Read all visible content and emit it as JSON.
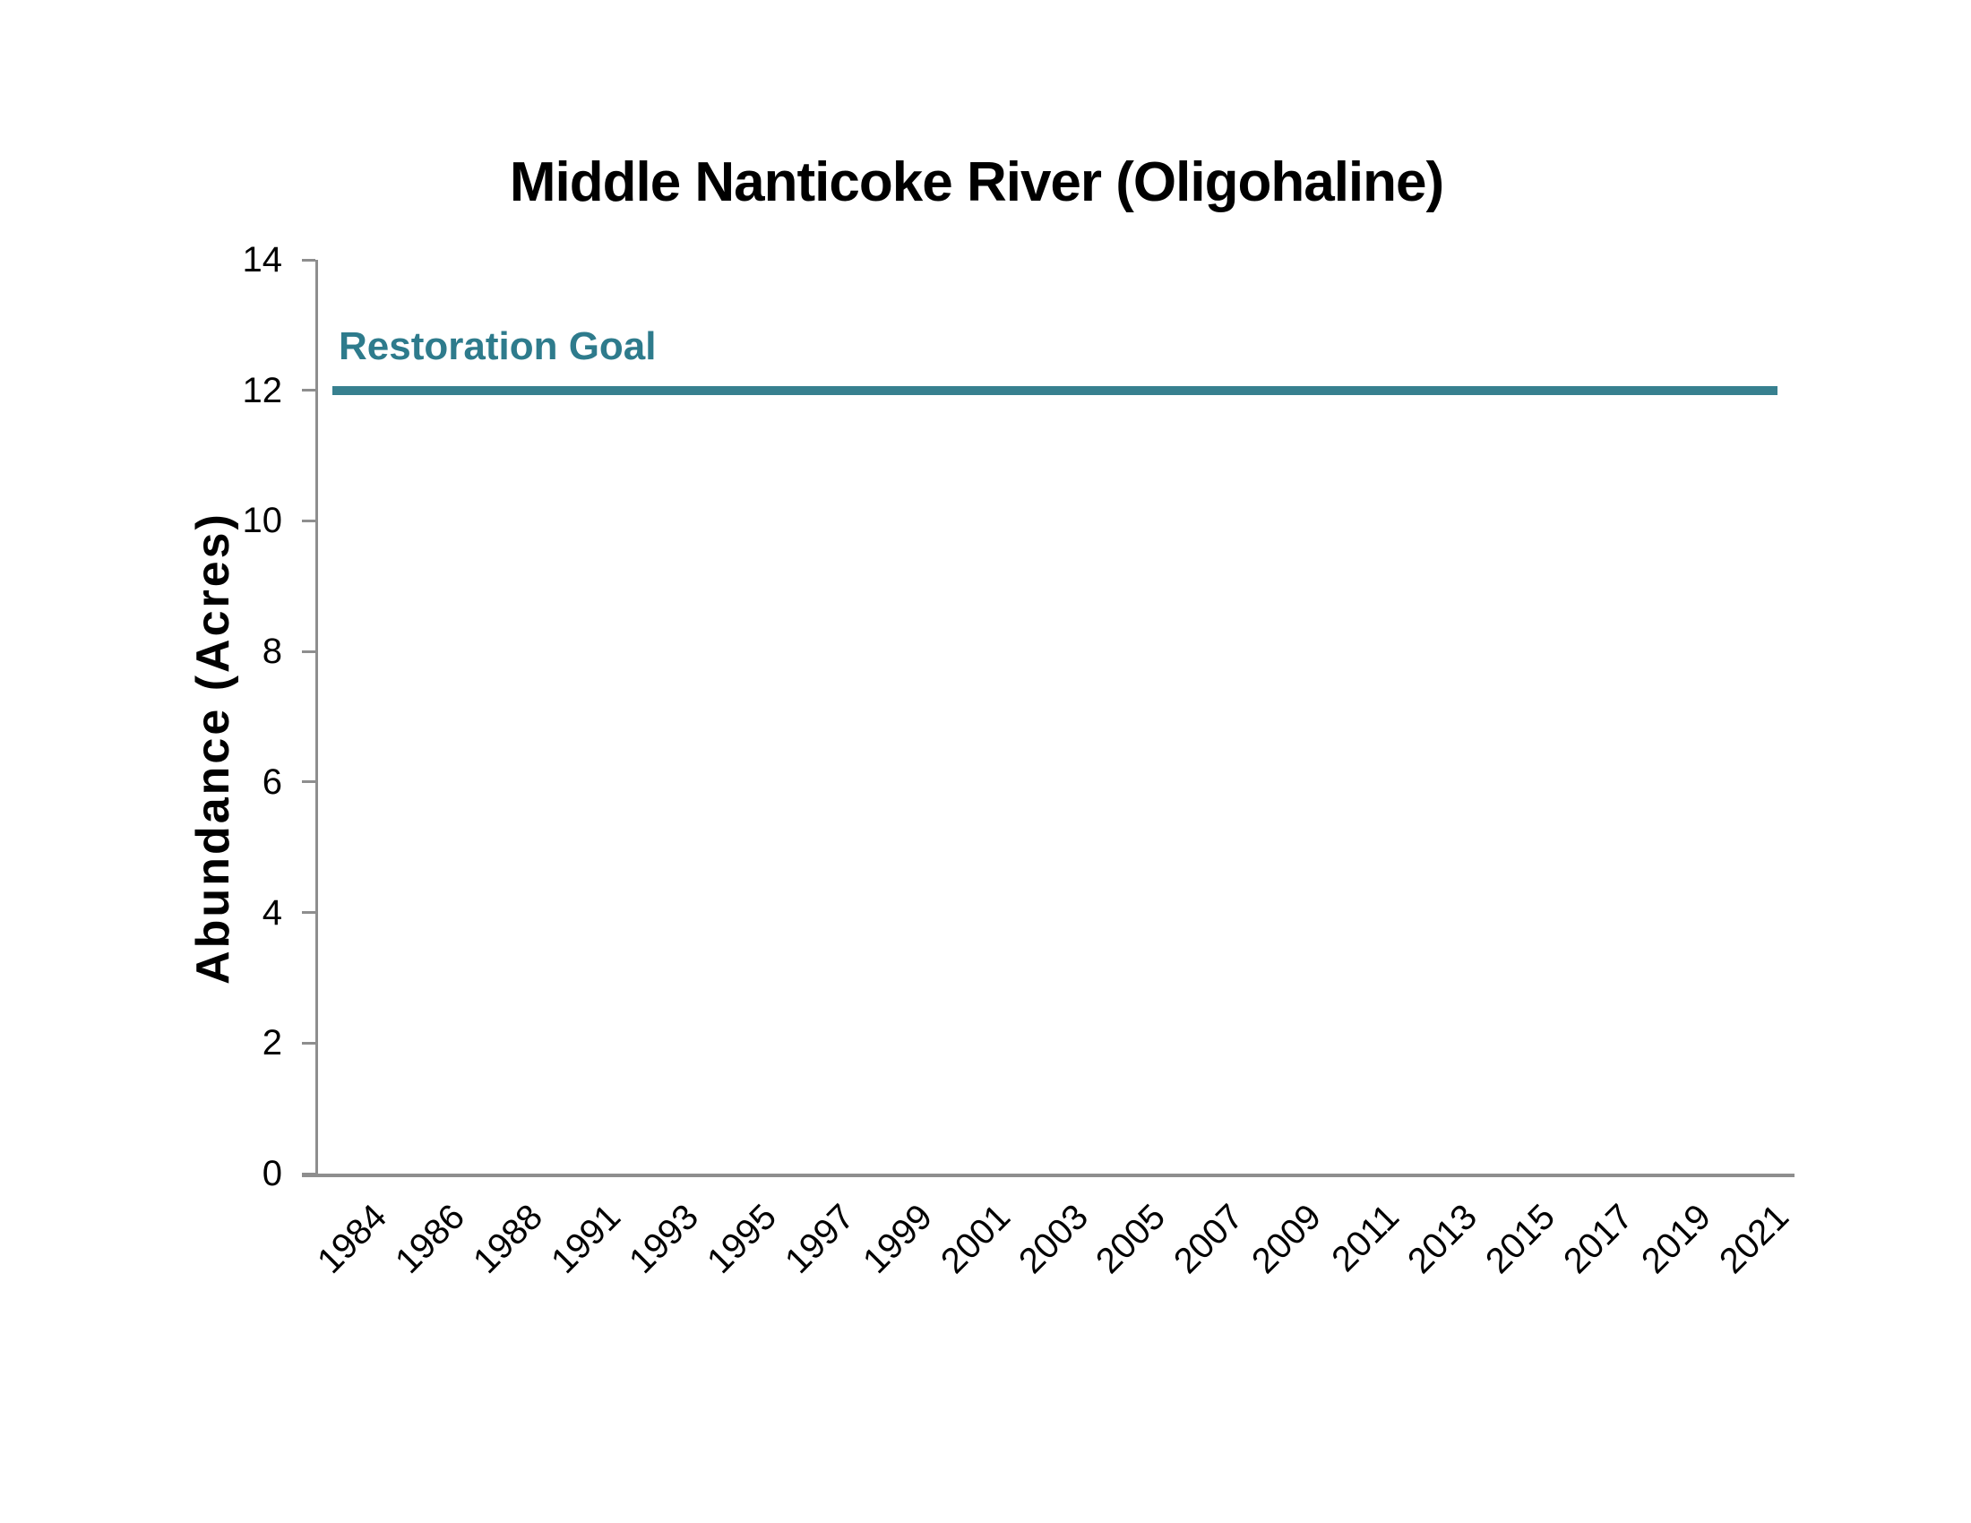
{
  "chart": {
    "title": "Middle Nanticoke River (Oligohaline)",
    "ylabel": "Abundance (Acres)",
    "goal_label": "Restoration Goal"
  },
  "chart_data": {
    "type": "line",
    "title": "Middle Nanticoke River (Oligohaline)",
    "xlabel": "",
    "ylabel": "Abundance (Acres)",
    "categories": [
      "1984",
      "1986",
      "1988",
      "1991",
      "1993",
      "1995",
      "1997",
      "1999",
      "2001",
      "2003",
      "2005",
      "2007",
      "2009",
      "2011",
      "2013",
      "2015",
      "2017",
      "2019",
      "2021"
    ],
    "series": [
      {
        "name": "Restoration Goal",
        "values": [
          12,
          12,
          12,
          12,
          12,
          12,
          12,
          12,
          12,
          12,
          12,
          12,
          12,
          12,
          12,
          12,
          12,
          12,
          12
        ]
      }
    ],
    "goal_value": 12,
    "ylim": [
      0,
      14
    ],
    "yticks": [
      0,
      2,
      4,
      6,
      8,
      10,
      12,
      14
    ],
    "grid": false,
    "legend_position": "none",
    "annotations": [
      {
        "text": "Restoration Goal",
        "x": "1984",
        "y": 12.8
      }
    ],
    "colors": {
      "restoration_goal": "#37808f",
      "goal_label_text": "#2e7b8c",
      "axis": "#8e8e8e",
      "text": "#000000",
      "background": "#ffffff"
    }
  }
}
